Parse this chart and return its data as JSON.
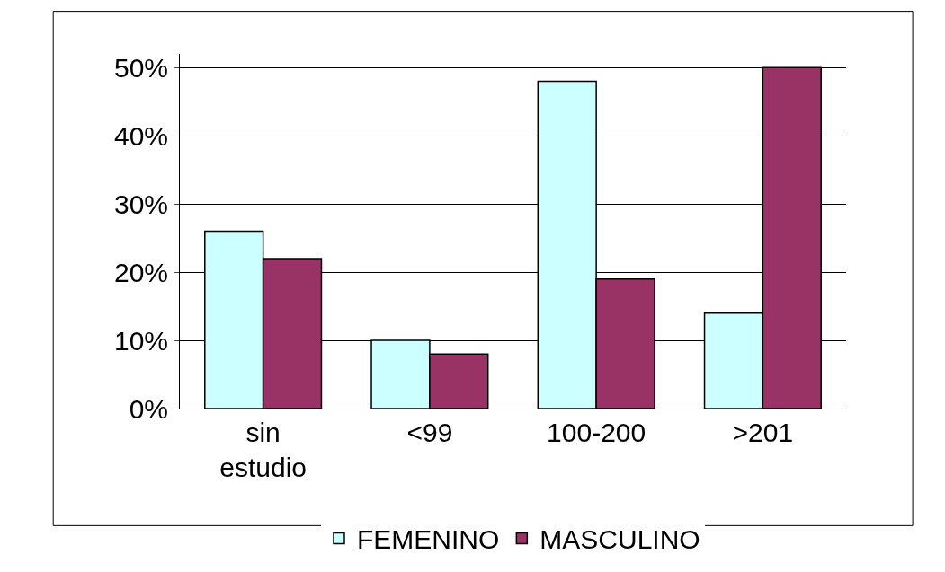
{
  "chart_data": {
    "type": "bar",
    "categories": [
      "sin estudio",
      "<99",
      "100-200",
      ">201"
    ],
    "series": [
      {
        "name": "FEMENINO",
        "color": "#ccffff",
        "values": [
          26,
          10,
          48,
          14
        ]
      },
      {
        "name": "MASCULINO",
        "color": "#993366",
        "values": [
          22,
          8,
          19,
          50
        ]
      }
    ],
    "ylim": [
      0,
      52
    ],
    "yticks": [
      {
        "value": 0,
        "label": "0%"
      },
      {
        "value": 10,
        "label": "10%"
      },
      {
        "value": 20,
        "label": "20%"
      },
      {
        "value": 30,
        "label": "30%"
      },
      {
        "value": 40,
        "label": "40%"
      },
      {
        "value": 50,
        "label": "50%"
      }
    ],
    "grid": "y",
    "legend": "bottom"
  }
}
